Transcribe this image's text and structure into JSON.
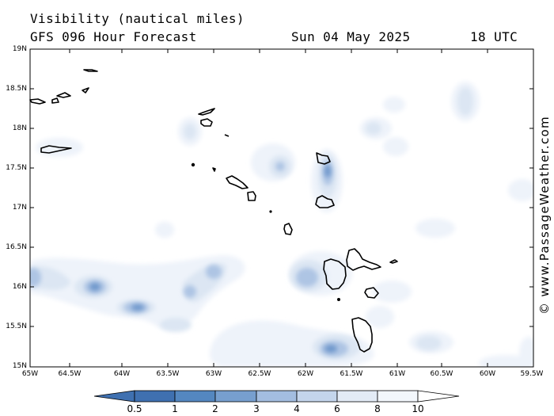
{
  "header": {
    "title": "Visibility (nautical miles)",
    "subtitle": "GFS 096 Hour Forecast",
    "date": "Sun 04 May 2025",
    "time": "18 UTC"
  },
  "map": {
    "lat_labels": [
      "19N",
      "18.5N",
      "18N",
      "17.5N",
      "17N",
      "16.5N",
      "16N",
      "15.5N",
      "15N"
    ],
    "lon_labels": [
      "65W",
      "64.5W",
      "64W",
      "63.5W",
      "63W",
      "62.5W",
      "62W",
      "61.5W",
      "61W",
      "60.5W",
      "60W",
      "59.5W"
    ],
    "watermark": "© www.PassageWeather.com"
  },
  "colorbar": {
    "labels": [
      "0.5",
      "1",
      "2",
      "3",
      "4",
      "6",
      "8",
      "10"
    ],
    "colors": [
      "#3f70b0",
      "#5487c0",
      "#779fcf",
      "#a3bde0",
      "#c4d5ec",
      "#e3ebf6",
      "#f3f7fc"
    ]
  }
}
